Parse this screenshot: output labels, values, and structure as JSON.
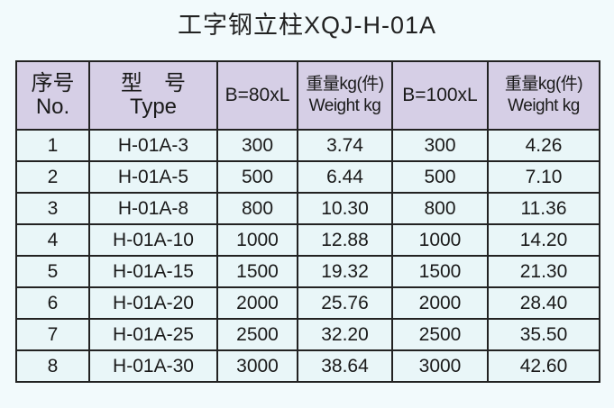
{
  "title": "工字钢立柱XQJ-H-01A",
  "table": {
    "headers": [
      {
        "line1": "序号",
        "line2": "No."
      },
      {
        "line1": "型　号",
        "line2": "Type"
      },
      {
        "line1": "B=80xL",
        "line2": ""
      },
      {
        "line1": "重量kg(件)",
        "line2": "Weight kg"
      },
      {
        "line1": "B=100xL",
        "line2": ""
      },
      {
        "line1": "重量kg(件)",
        "line2": "Weight kg"
      }
    ],
    "rows": [
      [
        "1",
        "H-01A-3",
        "300",
        "3.74",
        "300",
        "4.26"
      ],
      [
        "2",
        "H-01A-5",
        "500",
        "6.44",
        "500",
        "7.10"
      ],
      [
        "3",
        "H-01A-8",
        "800",
        "10.30",
        "800",
        "11.36"
      ],
      [
        "4",
        "H-01A-10",
        "1000",
        "12.88",
        "1000",
        "14.20"
      ],
      [
        "5",
        "H-01A-15",
        "1500",
        "19.32",
        "1500",
        "21.30"
      ],
      [
        "6",
        "H-01A-20",
        "2000",
        "25.76",
        "2000",
        "28.40"
      ],
      [
        "7",
        "H-01A-25",
        "2500",
        "32.20",
        "2500",
        "35.50"
      ],
      [
        "8",
        "H-01A-30",
        "3000",
        "38.64",
        "3000",
        "42.60"
      ]
    ]
  }
}
